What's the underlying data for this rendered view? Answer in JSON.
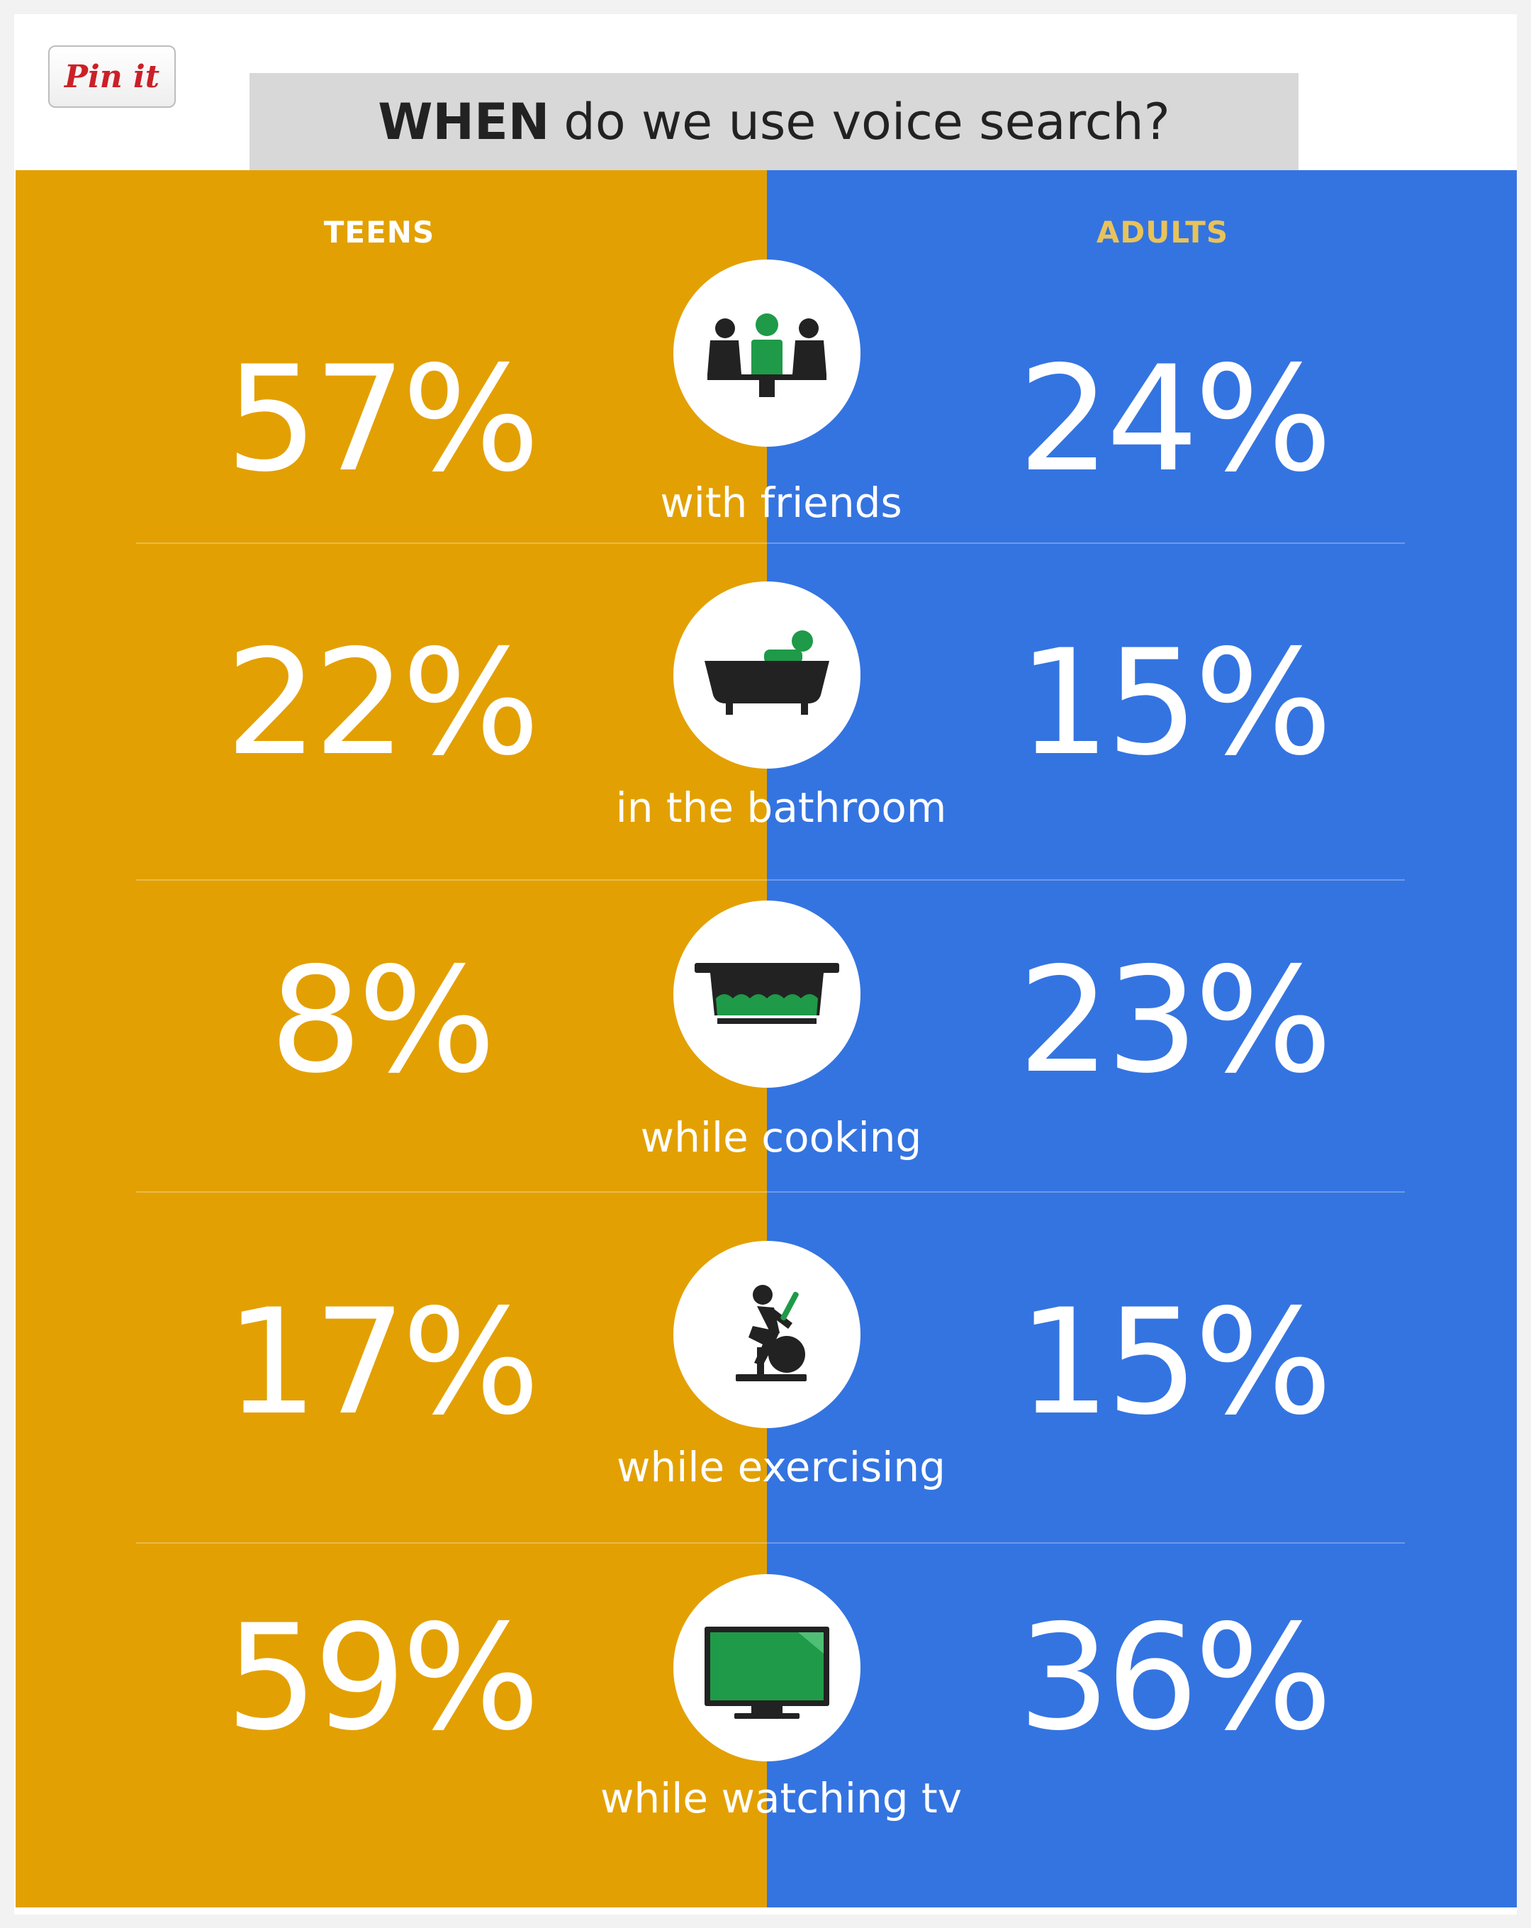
{
  "pin_button": {
    "label": "Pin it"
  },
  "title": {
    "bold": "WHEN",
    "rest": "do we use voice search?"
  },
  "colors": {
    "teens": "#e3a002",
    "adults": "#3474e1",
    "adults_header": "#e8c35a",
    "teens_header": "#ffffff",
    "icon_accent": "#1f9a48"
  },
  "chart_data": {
    "type": "table",
    "title": "WHEN do we use voice search?",
    "columns": [
      "TEENS",
      "ADULTS"
    ],
    "unit": "%",
    "rows": [
      {
        "category": "with friends",
        "icon": "friends-icon",
        "teens": 57,
        "adults": 24
      },
      {
        "category": "in the bathroom",
        "icon": "bathtub-icon",
        "teens": 22,
        "adults": 15
      },
      {
        "category": "while cooking",
        "icon": "cooking-pot-icon",
        "teens": 8,
        "adults": 23
      },
      {
        "category": "while exercising",
        "icon": "exercise-bike-icon",
        "teens": 17,
        "adults": 15
      },
      {
        "category": "while watching tv",
        "icon": "tv-icon",
        "teens": 59,
        "adults": 36
      }
    ]
  }
}
